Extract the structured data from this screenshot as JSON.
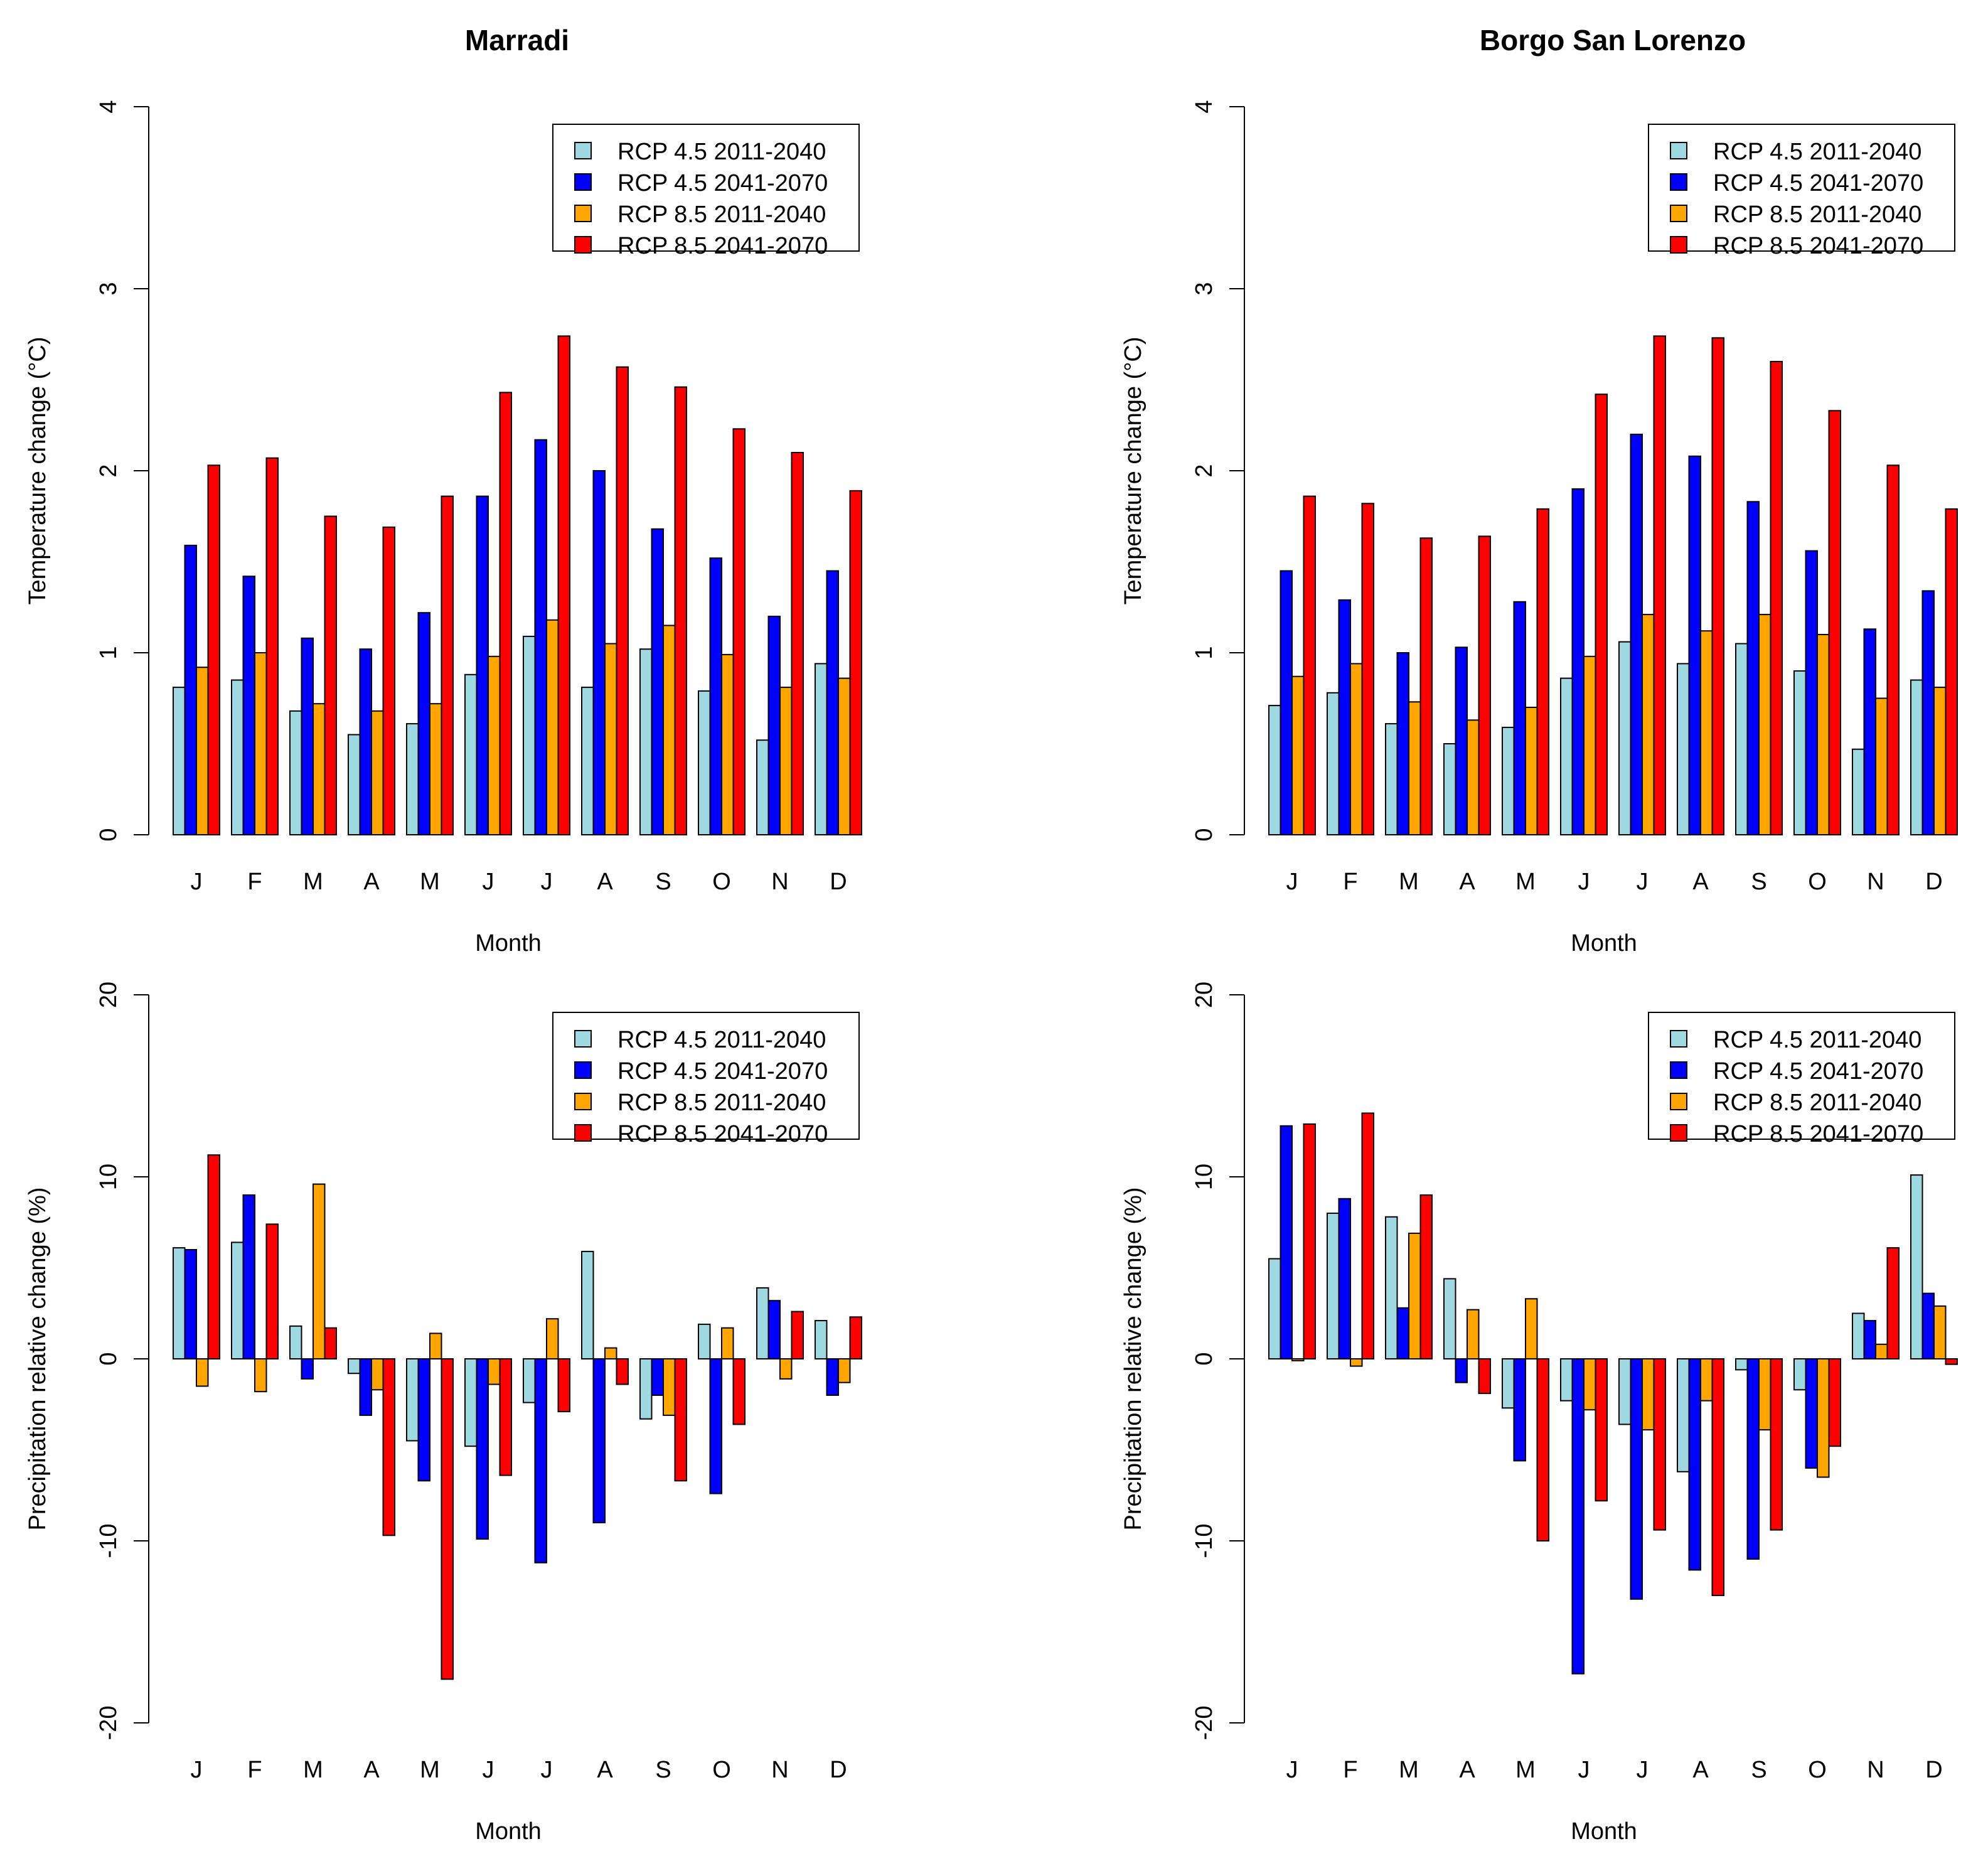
{
  "figure": {
    "month_labels": [
      "J",
      "F",
      "M",
      "A",
      "M",
      "J",
      "J",
      "A",
      "S",
      "O",
      "N",
      "D"
    ]
  },
  "chart_data": [
    {
      "type": "bar",
      "title": "Marradi",
      "xlabel": "Month",
      "ylabel": "Temperature change (°C)",
      "ylim": [
        0,
        4
      ],
      "yticks": [
        0,
        1,
        2,
        3,
        4
      ],
      "categories": [
        "J",
        "F",
        "M",
        "A",
        "M",
        "J",
        "J",
        "A",
        "S",
        "O",
        "N",
        "D"
      ],
      "legend_position": "top-right",
      "series": [
        {
          "name": "RCP 4.5 2011-2040",
          "color": "#9ed8e0",
          "values": [
            0.81,
            0.85,
            0.68,
            0.55,
            0.61,
            0.88,
            1.09,
            0.81,
            1.02,
            0.79,
            0.52,
            0.94
          ]
        },
        {
          "name": "RCP 4.5 2041-2070",
          "color": "#0000ff",
          "values": [
            1.59,
            1.42,
            1.08,
            1.02,
            1.22,
            1.86,
            2.17,
            2.0,
            1.68,
            1.52,
            1.2,
            1.45
          ]
        },
        {
          "name": "RCP 8.5 2011-2040",
          "color": "#ffa500",
          "values": [
            0.92,
            1.0,
            0.72,
            0.68,
            0.72,
            0.98,
            1.18,
            1.05,
            1.15,
            0.99,
            0.81,
            0.86
          ]
        },
        {
          "name": "RCP 8.5 2041-2070",
          "color": "#ff0000",
          "values": [
            2.03,
            2.07,
            1.75,
            1.69,
            1.86,
            2.43,
            2.74,
            2.57,
            2.46,
            2.23,
            2.1,
            1.89
          ]
        }
      ]
    },
    {
      "type": "bar",
      "title": "Borgo San Lorenzo",
      "xlabel": "Month",
      "ylabel": "Temperature change (°C)",
      "ylim": [
        0,
        4
      ],
      "yticks": [
        0,
        1,
        2,
        3,
        4
      ],
      "categories": [
        "J",
        "F",
        "M",
        "A",
        "M",
        "J",
        "J",
        "A",
        "S",
        "O",
        "N",
        "D"
      ],
      "legend_position": "top-right",
      "series": [
        {
          "name": "RCP 4.5 2011-2040",
          "color": "#9ed8e0",
          "values": [
            0.71,
            0.78,
            0.61,
            0.5,
            0.59,
            0.86,
            1.06,
            0.94,
            1.05,
            0.9,
            0.47,
            0.85
          ]
        },
        {
          "name": "RCP 4.5 2041-2070",
          "color": "#0000ff",
          "values": [
            1.45,
            1.29,
            1.0,
            1.03,
            1.28,
            1.9,
            2.2,
            2.08,
            1.83,
            1.56,
            1.13,
            1.34
          ]
        },
        {
          "name": "RCP 8.5 2011-2040",
          "color": "#ffa500",
          "values": [
            0.87,
            0.94,
            0.73,
            0.63,
            0.7,
            0.98,
            1.21,
            1.12,
            1.21,
            1.1,
            0.75,
            0.81
          ]
        },
        {
          "name": "RCP 8.5 2041-2070",
          "color": "#ff0000",
          "values": [
            1.86,
            1.82,
            1.63,
            1.64,
            1.79,
            2.42,
            2.74,
            2.73,
            2.6,
            2.33,
            2.03,
            1.79
          ]
        }
      ]
    },
    {
      "type": "bar",
      "title": "",
      "xlabel": "Month",
      "ylabel": "Precipitation relative change (%)",
      "ylim": [
        -20,
        20
      ],
      "yticks": [
        -20,
        -10,
        0,
        10,
        20
      ],
      "categories": [
        "J",
        "F",
        "M",
        "A",
        "M",
        "J",
        "J",
        "A",
        "S",
        "O",
        "N",
        "D"
      ],
      "legend_position": "top-right",
      "series": [
        {
          "name": "RCP 4.5 2011-2040",
          "color": "#9ed8e0",
          "values": [
            6.1,
            6.4,
            1.8,
            -0.8,
            -4.5,
            -4.8,
            -2.4,
            5.9,
            -3.3,
            1.9,
            3.9,
            2.1
          ]
        },
        {
          "name": "RCP 4.5 2041-2070",
          "color": "#0000ff",
          "values": [
            6.0,
            9.0,
            -1.1,
            -3.1,
            -6.7,
            -9.9,
            -11.2,
            -9.0,
            -2.0,
            -7.4,
            3.2,
            -2.0
          ]
        },
        {
          "name": "RCP 8.5 2011-2040",
          "color": "#ffa500",
          "values": [
            -1.5,
            -1.8,
            9.6,
            -1.7,
            1.4,
            -1.4,
            2.2,
            0.6,
            -3.1,
            1.7,
            -1.1,
            -1.3
          ]
        },
        {
          "name": "RCP 8.5 2041-2070",
          "color": "#ff0000",
          "values": [
            11.2,
            7.4,
            1.7,
            -9.7,
            -17.6,
            -6.4,
            -2.9,
            -1.4,
            -6.7,
            -3.6,
            2.6,
            2.3
          ]
        }
      ]
    },
    {
      "type": "bar",
      "title": "",
      "xlabel": "Month",
      "ylabel": "Precipitation relative change (%)",
      "ylim": [
        -20,
        20
      ],
      "yticks": [
        -20,
        -10,
        0,
        10,
        20
      ],
      "categories": [
        "J",
        "F",
        "M",
        "A",
        "M",
        "J",
        "J",
        "A",
        "S",
        "O",
        "N",
        "D"
      ],
      "legend_position": "top-right",
      "series": [
        {
          "name": "RCP 4.5 2011-2040",
          "color": "#9ed8e0",
          "values": [
            5.5,
            8.0,
            7.8,
            4.4,
            -2.7,
            -2.3,
            -3.6,
            -6.2,
            -0.6,
            -1.7,
            2.5,
            10.1
          ]
        },
        {
          "name": "RCP 4.5 2041-2070",
          "color": "#0000ff",
          "values": [
            12.8,
            8.8,
            2.8,
            -1.3,
            -5.6,
            -17.3,
            -13.2,
            -11.6,
            -11.0,
            -6.0,
            2.1,
            3.6
          ]
        },
        {
          "name": "RCP 8.5 2011-2040",
          "color": "#ffa500",
          "values": [
            -0.1,
            -0.4,
            6.9,
            2.7,
            3.3,
            -2.8,
            -3.9,
            -2.3,
            -3.9,
            -6.5,
            0.8,
            2.9
          ]
        },
        {
          "name": "RCP 8.5 2041-2070",
          "color": "#ff0000",
          "values": [
            12.9,
            13.5,
            9.0,
            -1.9,
            -10.0,
            -7.8,
            -9.4,
            -13.0,
            -9.4,
            -4.8,
            6.1,
            -0.3
          ]
        }
      ]
    }
  ]
}
